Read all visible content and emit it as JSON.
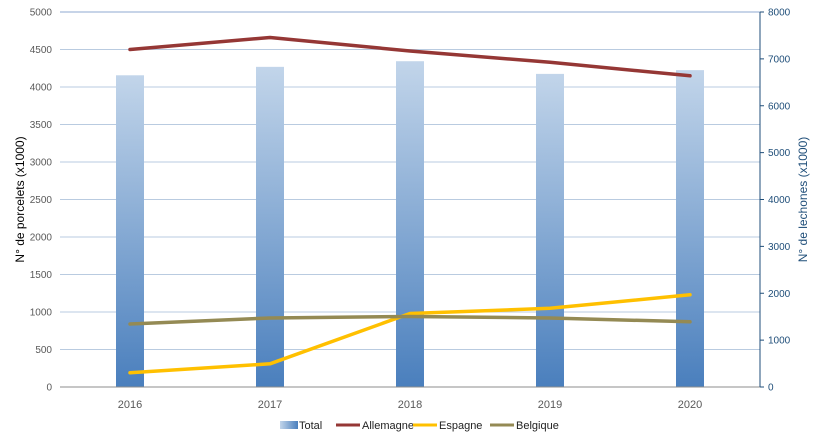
{
  "chart_data": {
    "type": "bar+line",
    "title": "",
    "categories": [
      "2016",
      "2017",
      "2018",
      "2019",
      "2020"
    ],
    "bar_series": {
      "name": "Total",
      "axis": "right",
      "values": [
        6650,
        6830,
        6950,
        6680,
        6760
      ],
      "color_top": "#c2d5ea",
      "color_bottom": "#4a7fbd"
    },
    "line_series": [
      {
        "name": "Allemagne",
        "axis": "left",
        "values": [
          4500,
          4660,
          4480,
          4330,
          4150
        ],
        "color": "#953735"
      },
      {
        "name": "Espagne",
        "axis": "left",
        "values": [
          190,
          310,
          980,
          1050,
          1230
        ],
        "color": "#ffc000"
      },
      {
        "name": "Belgique",
        "axis": "left",
        "values": [
          840,
          920,
          940,
          920,
          870
        ],
        "color": "#948a54"
      }
    ],
    "ylabel_left": "N° de porcelets (x1000)",
    "ylim_left": [
      0,
      5000
    ],
    "yticks_left": [
      "0",
      "500",
      "1000",
      "1500",
      "2000",
      "2500",
      "3000",
      "3500",
      "4000",
      "4500",
      "5000"
    ],
    "ylabel_right": "N° de lechones (x1000)",
    "ylim_right": [
      0,
      8000
    ],
    "yticks_right": [
      "0",
      "1000",
      "2000",
      "3000",
      "4000",
      "5000",
      "6000",
      "7000",
      "8000"
    ],
    "right_axis_color": "#1f4e79",
    "grid": true,
    "legend_position": "bottom"
  }
}
